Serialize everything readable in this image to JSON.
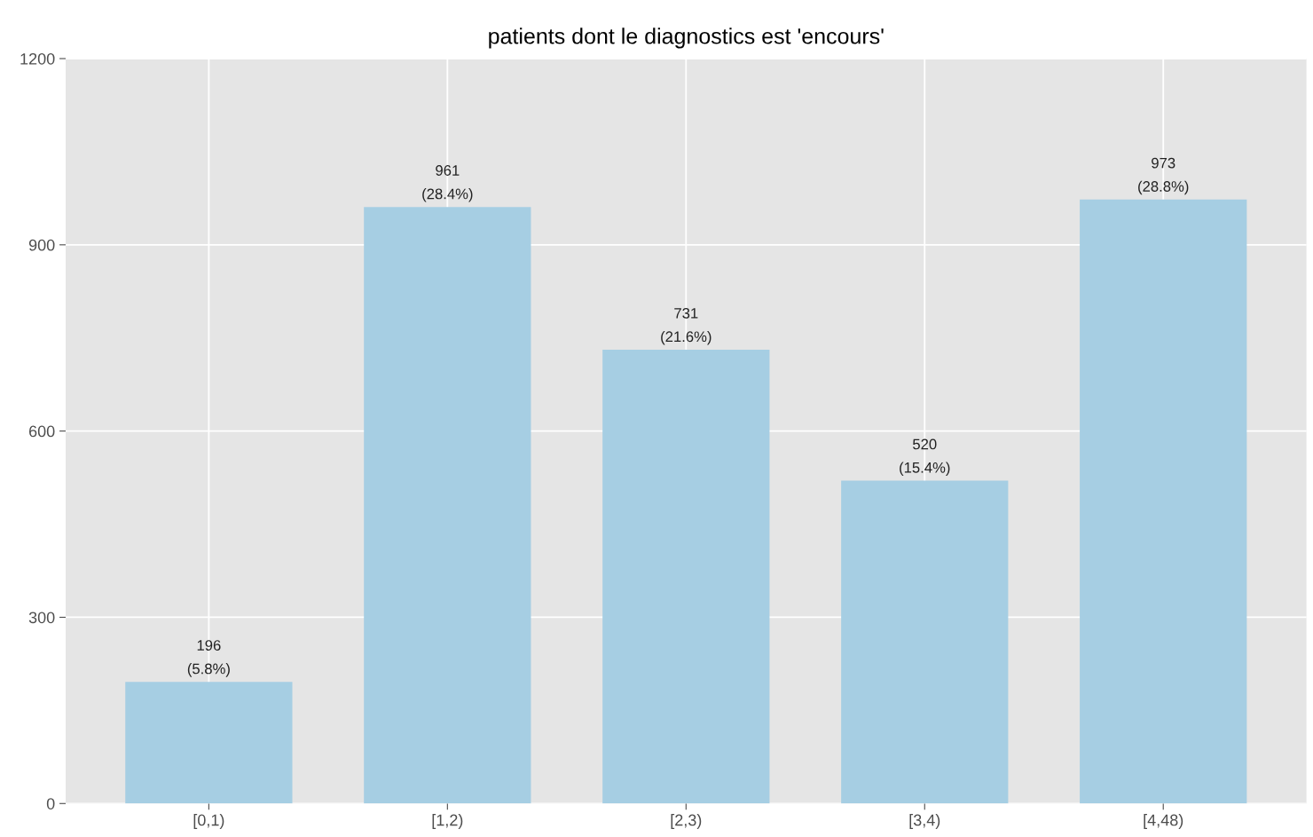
{
  "chart_data": {
    "type": "bar",
    "title": "patients dont le diagnostics est 'encours'",
    "categories": [
      "[0,1)",
      "[1,2)",
      "[2,3)",
      "[3,4)",
      "[4,48)"
    ],
    "values": [
      196,
      961,
      731,
      520,
      973
    ],
    "value_labels": [
      "196\n(5.8%)",
      "961\n(28.4%)",
      "731\n(21.6%)",
      "520\n(15.4%)",
      "973\n(28.8%)"
    ],
    "color": "#a6cee3",
    "ylim": [
      0,
      1200
    ],
    "yticks": [
      0,
      300,
      600,
      900,
      1200
    ],
    "grid": true
  }
}
